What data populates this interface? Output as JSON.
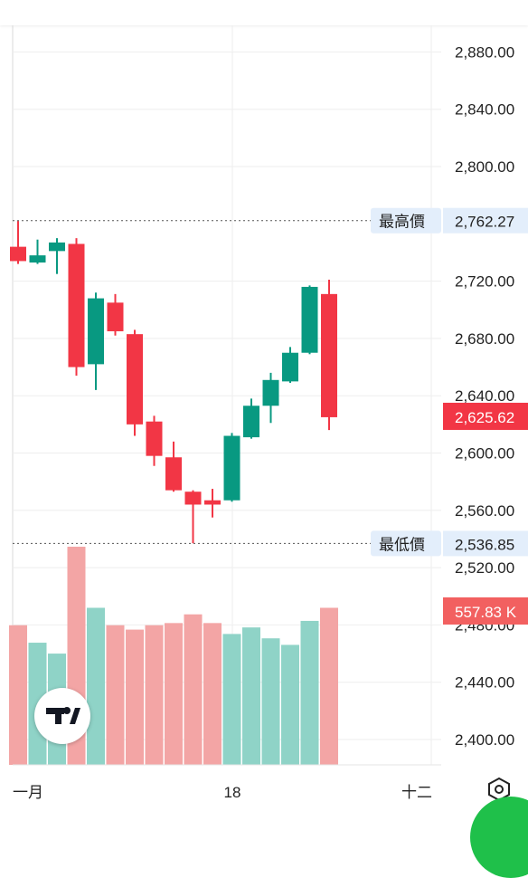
{
  "chart_data": {
    "type": "candlestick",
    "x_ticks": [
      "一月",
      "18",
      "十二"
    ],
    "ylim": [
      2385,
      2900
    ],
    "y_ticks": [
      "2,880.00",
      "2,840.00",
      "2,800.00",
      "2,762.27",
      "2,720.00",
      "2,680.00",
      "2,640.00",
      "2,600.00",
      "2,560.00",
      "2,520.00",
      "2,480.00",
      "2,440.00",
      "2,400.00"
    ],
    "y_tick_values": [
      2880,
      2840,
      2800,
      2762.27,
      2720,
      2680,
      2640,
      2600,
      2560,
      2520,
      2480,
      2440,
      2400
    ],
    "high_label": "最高價",
    "high_value": 2762.27,
    "high_value_text": "2,762.27",
    "low_label": "最低價",
    "low_value": 2536.85,
    "low_value_text": "2,536.85",
    "last_price": 2625.62,
    "last_price_text": "2,625.62",
    "last_volume_text": "557.83 K",
    "up_color": "#089981",
    "down_color": "#f23645",
    "candles": [
      {
        "open": 2744,
        "high": 2762,
        "low": 2732,
        "close": 2734
      },
      {
        "open": 2733,
        "high": 2749,
        "low": 2732,
        "close": 2738
      },
      {
        "open": 2741,
        "high": 2750,
        "low": 2725,
        "close": 2747
      },
      {
        "open": 2746,
        "high": 2750,
        "low": 2654,
        "close": 2660
      },
      {
        "open": 2662,
        "high": 2712,
        "low": 2644,
        "close": 2708
      },
      {
        "open": 2705,
        "high": 2711,
        "low": 2682,
        "close": 2685
      },
      {
        "open": 2683,
        "high": 2686,
        "low": 2612,
        "close": 2620
      },
      {
        "open": 2622,
        "high": 2626,
        "low": 2591,
        "close": 2598
      },
      {
        "open": 2597,
        "high": 2608,
        "low": 2573,
        "close": 2574
      },
      {
        "open": 2573,
        "high": 2574,
        "low": 2537,
        "close": 2564
      },
      {
        "open": 2567,
        "high": 2575,
        "low": 2555,
        "close": 2564
      },
      {
        "open": 2567,
        "high": 2614,
        "low": 2566,
        "close": 2612
      },
      {
        "open": 2611,
        "high": 2638,
        "low": 2610,
        "close": 2633
      },
      {
        "open": 2633,
        "high": 2656,
        "low": 2621,
        "close": 2651
      },
      {
        "open": 2650,
        "high": 2674,
        "low": 2649,
        "close": 2670
      },
      {
        "open": 2670,
        "high": 2717,
        "low": 2669,
        "close": 2716
      },
      {
        "open": 2711,
        "high": 2721,
        "low": 2616,
        "close": 2625
      }
    ],
    "volumes": [
      0.64,
      0.56,
      0.51,
      1.0,
      0.72,
      0.64,
      0.62,
      0.64,
      0.65,
      0.69,
      0.65,
      0.6,
      0.63,
      0.58,
      0.55,
      0.66,
      0.72
    ]
  },
  "colors": {
    "background": "#ffffff",
    "grid": "#eeeeee",
    "axis_label_bg": "#e3eefb",
    "last_price_bg": "#f23645",
    "volume_up": "#8fd3c7",
    "volume_down": "#f3a5a5"
  },
  "icons": {
    "logo": "tradingview-logo-icon",
    "settings": "settings-hexagon-icon"
  }
}
